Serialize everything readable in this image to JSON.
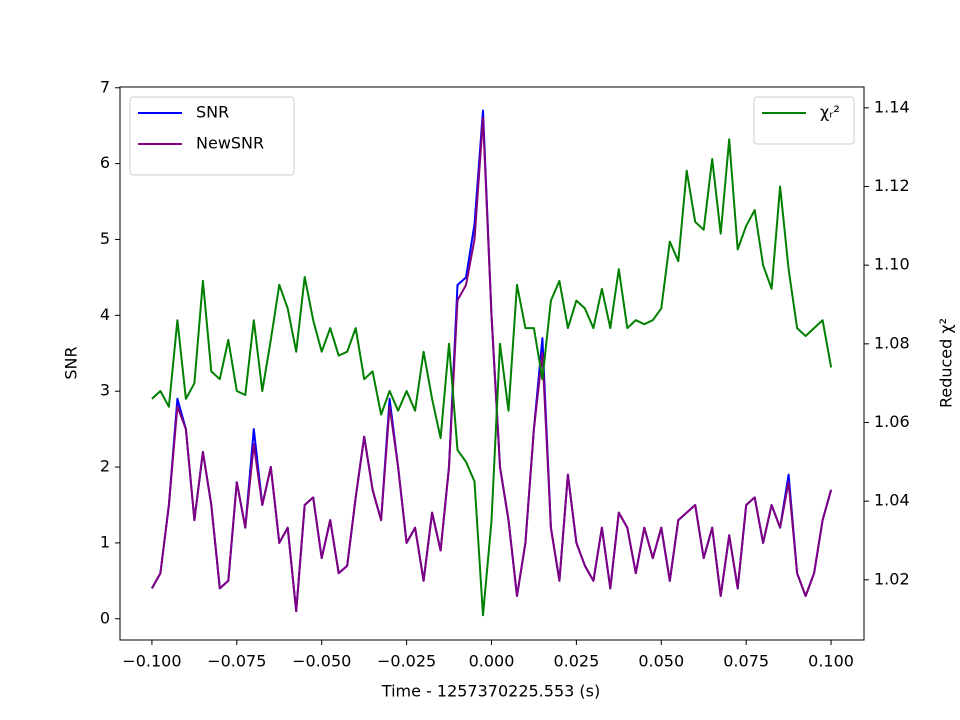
{
  "chart_data": {
    "type": "line",
    "xlabel": "Time - 1257370225.553 (s)",
    "ylabel": "SNR",
    "y2label": "Reduced χ²",
    "x": [
      -0.1,
      -0.0975,
      -0.095,
      -0.0925,
      -0.09,
      -0.0875,
      -0.085,
      -0.0825,
      -0.08,
      -0.0775,
      -0.075,
      -0.0725,
      -0.07,
      -0.0675,
      -0.065,
      -0.0625,
      -0.06,
      -0.0575,
      -0.055,
      -0.0525,
      -0.05,
      -0.0475,
      -0.045,
      -0.0425,
      -0.04,
      -0.0375,
      -0.035,
      -0.0325,
      -0.03,
      -0.0275,
      -0.025,
      -0.0225,
      -0.02,
      -0.0175,
      -0.015,
      -0.0125,
      -0.01,
      -0.0075,
      -0.005,
      -0.0025,
      0,
      0.0025,
      0.005,
      0.0075,
      0.01,
      0.0125,
      0.015,
      0.0175,
      0.02,
      0.0225,
      0.025,
      0.0275,
      0.03,
      0.0325,
      0.035,
      0.0375,
      0.04,
      0.0425,
      0.045,
      0.0475,
      0.05,
      0.0525,
      0.055,
      0.0575,
      0.06,
      0.0625,
      0.065,
      0.0675,
      0.07,
      0.0725,
      0.075,
      0.0775,
      0.08,
      0.0825,
      0.085,
      0.0875,
      0.09,
      0.0925,
      0.095,
      0.0975,
      0.1
    ],
    "series": [
      {
        "name": "SNR",
        "color": "#0000ff",
        "axis": "y",
        "values": [
          0.4,
          0.6,
          1.5,
          2.9,
          2.5,
          1.3,
          2.2,
          1.5,
          0.4,
          0.5,
          1.8,
          1.2,
          2.5,
          1.5,
          2.0,
          1.0,
          1.2,
          0.1,
          1.5,
          1.6,
          0.8,
          1.3,
          0.6,
          0.7,
          1.6,
          2.4,
          1.7,
          1.3,
          2.9,
          2.0,
          1.0,
          1.2,
          0.5,
          1.4,
          0.9,
          2.0,
          4.4,
          4.5,
          5.2,
          6.7,
          4.0,
          2.0,
          1.3,
          0.3,
          1.0,
          2.5,
          3.7,
          1.2,
          0.5,
          1.9,
          1.0,
          0.7,
          0.5,
          1.2,
          0.4,
          1.4,
          1.2,
          0.6,
          1.2,
          0.8,
          1.2,
          0.5,
          1.3,
          1.4,
          1.5,
          0.8,
          1.2,
          0.3,
          1.1,
          0.4,
          1.5,
          1.6,
          1.0,
          1.5,
          1.2,
          1.9,
          0.6,
          0.3,
          0.6,
          1.3,
          1.7
        ]
      },
      {
        "name": "NewSNR",
        "color": "#800080",
        "axis": "y",
        "values": [
          0.4,
          0.6,
          1.5,
          2.8,
          2.5,
          1.3,
          2.2,
          1.5,
          0.4,
          0.5,
          1.8,
          1.2,
          2.3,
          1.5,
          2.0,
          1.0,
          1.2,
          0.1,
          1.5,
          1.6,
          0.8,
          1.3,
          0.6,
          0.7,
          1.6,
          2.4,
          1.7,
          1.3,
          2.8,
          2.0,
          1.0,
          1.2,
          0.5,
          1.4,
          0.9,
          2.0,
          4.2,
          4.4,
          5.0,
          6.6,
          4.0,
          2.0,
          1.3,
          0.3,
          1.0,
          2.5,
          3.5,
          1.2,
          0.5,
          1.9,
          1.0,
          0.7,
          0.5,
          1.2,
          0.4,
          1.4,
          1.2,
          0.6,
          1.2,
          0.8,
          1.2,
          0.5,
          1.3,
          1.4,
          1.5,
          0.8,
          1.2,
          0.3,
          1.1,
          0.4,
          1.5,
          1.6,
          1.0,
          1.5,
          1.2,
          1.8,
          0.6,
          0.3,
          0.6,
          1.3,
          1.7
        ]
      },
      {
        "name": "χᵣ²",
        "color": "#008000",
        "axis": "y2",
        "values": [
          1.066,
          1.068,
          1.064,
          1.086,
          1.066,
          1.07,
          1.096,
          1.073,
          1.071,
          1.081,
          1.068,
          1.067,
          1.086,
          1.068,
          1.081,
          1.095,
          1.089,
          1.078,
          1.097,
          1.086,
          1.078,
          1.084,
          1.077,
          1.078,
          1.084,
          1.071,
          1.073,
          1.062,
          1.068,
          1.063,
          1.068,
          1.063,
          1.078,
          1.066,
          1.056,
          1.08,
          1.053,
          1.05,
          1.045,
          1.011,
          1.035,
          1.08,
          1.063,
          1.095,
          1.084,
          1.084,
          1.071,
          1.091,
          1.096,
          1.084,
          1.091,
          1.089,
          1.084,
          1.094,
          1.084,
          1.099,
          1.084,
          1.086,
          1.085,
          1.086,
          1.089,
          1.106,
          1.101,
          1.124,
          1.111,
          1.109,
          1.127,
          1.108,
          1.132,
          1.104,
          1.11,
          1.114,
          1.1,
          1.094,
          1.12,
          1.099,
          1.084,
          1.082,
          1.084,
          1.086,
          1.074
        ]
      }
    ],
    "xlim": [
      -0.1094,
      0.1097
    ],
    "xticks": [
      {
        "value": -0.1,
        "label": "−0.100"
      },
      {
        "value": -0.075,
        "label": "−0.075"
      },
      {
        "value": -0.05,
        "label": "−0.050"
      },
      {
        "value": -0.025,
        "label": "−0.025"
      },
      {
        "value": 0,
        "label": "0.000"
      },
      {
        "value": 0.025,
        "label": "0.025"
      },
      {
        "value": 0.05,
        "label": "0.050"
      },
      {
        "value": 0.075,
        "label": "0.075"
      },
      {
        "value": 0.1,
        "label": "0.100"
      }
    ],
    "ylim": [
      -0.28,
      7.01
    ],
    "yticks": [
      0,
      1,
      2,
      3,
      4,
      5,
      6,
      7
    ],
    "y2lim": [
      1.0047,
      1.1453
    ],
    "y2ticks": [
      1.02,
      1.04,
      1.06,
      1.08,
      {
        "value": 1.1,
        "label": "1.10"
      },
      1.12,
      1.14
    ],
    "legend": "upper left",
    "legend2": "upper right"
  }
}
